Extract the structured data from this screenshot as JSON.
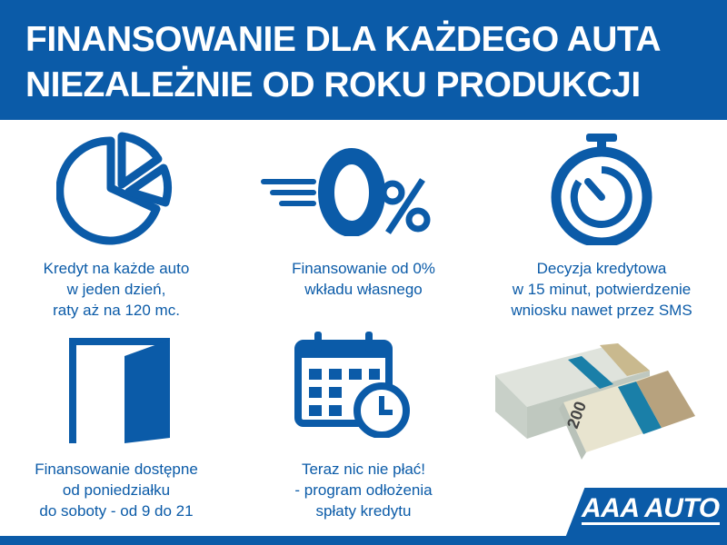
{
  "header": {
    "title_line1": "FINANSOWANIE DLA KAŻDEGO AUTA",
    "title_line2": "NIEZALEŻNIE OD ROKU PRODUKCJI"
  },
  "features": [
    {
      "icon": "pie-chart-icon",
      "lines": [
        "Kredyt na każde auto",
        "w jeden dzień,",
        "raty aż na 120 mc."
      ]
    },
    {
      "icon": "zero-percent-icon",
      "lines": [
        "Finansowanie od 0%",
        "wkładu własnego"
      ]
    },
    {
      "icon": "stopwatch-icon",
      "lines": [
        "Decyzja kredytowa",
        "w 15 minut, potwierdzenie",
        "wniosku nawet przez SMS"
      ]
    },
    {
      "icon": "open-door-icon",
      "lines": [
        "Finansowanie dostępne",
        "od poniedziałku",
        "do soboty - od 9 do 21"
      ]
    },
    {
      "icon": "calendar-clock-icon",
      "lines": [
        "Teraz nic nie płać!",
        "- program odłożenia",
        "spłaty kredytu"
      ]
    }
  ],
  "brand": {
    "logo_text": "AAA AUTO"
  },
  "colors": {
    "brand_blue": "#0b5ba8",
    "background": "#ffffff"
  }
}
